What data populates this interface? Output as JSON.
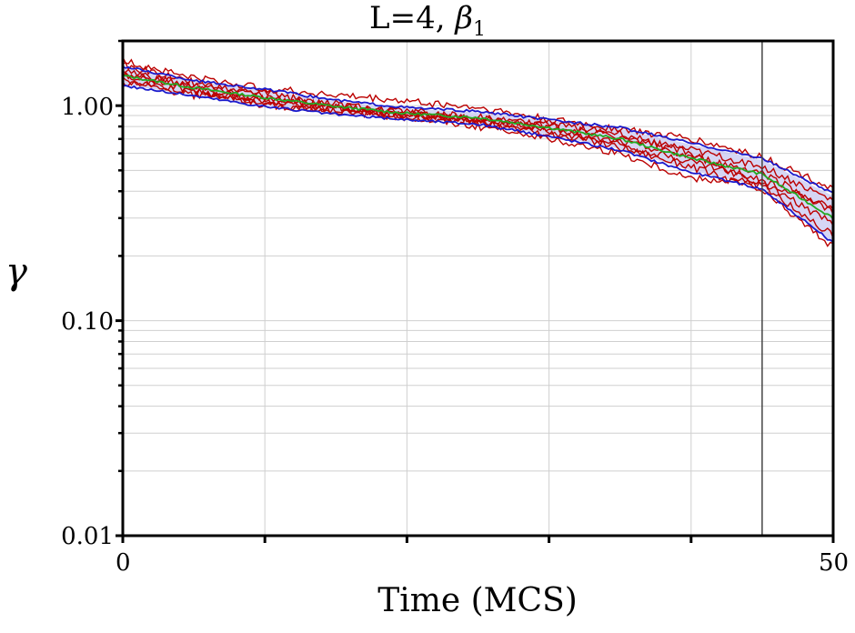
{
  "chart_data": {
    "type": "line",
    "title_main": "L=4, ",
    "title_symbol": "β",
    "title_subscript": "1",
    "xlabel": "Time (MCS)",
    "ylabel": "γ",
    "xlim": [
      0,
      50
    ],
    "ylim": [
      0.01,
      2.0
    ],
    "yscale": "log",
    "grid": true,
    "xtick_labels": [
      {
        "value": 0,
        "label": "0"
      },
      {
        "value": 50,
        "label": "50"
      }
    ],
    "ytick_labels": [
      {
        "value": 1.0,
        "label": "1.00"
      },
      {
        "value": 0.1,
        "label": "0.10"
      },
      {
        "value": 0.01,
        "label": "0.01"
      }
    ],
    "vertical_marker_x": 45,
    "band": {
      "x": [
        0,
        5,
        10,
        15,
        20,
        25,
        30,
        35,
        40,
        45,
        50
      ],
      "upper": [
        1.5,
        1.3,
        1.18,
        1.05,
        0.97,
        0.93,
        0.85,
        0.78,
        0.66,
        0.56,
        0.38
      ],
      "lower": [
        1.25,
        1.12,
        1.0,
        0.92,
        0.87,
        0.83,
        0.73,
        0.63,
        0.5,
        0.42,
        0.23
      ]
    },
    "series": [
      {
        "color": "#22aa22",
        "x": [
          0,
          5,
          10,
          15,
          20,
          25,
          30,
          35,
          40,
          45,
          50
        ],
        "values": [
          1.38,
          1.21,
          1.09,
          0.99,
          0.92,
          0.88,
          0.79,
          0.7,
          0.57,
          0.48,
          0.3
        ]
      },
      {
        "color": "#1a1acc",
        "x": [
          0,
          5,
          10,
          15,
          20,
          25,
          30,
          35,
          40,
          45,
          50
        ],
        "values": [
          1.52,
          1.31,
          1.19,
          1.06,
          0.98,
          0.94,
          0.86,
          0.79,
          0.67,
          0.57,
          0.39
        ]
      },
      {
        "color": "#1a1acc",
        "x": [
          0,
          5,
          10,
          15,
          20,
          25,
          30,
          35,
          40,
          45,
          50
        ],
        "values": [
          1.24,
          1.11,
          0.99,
          0.91,
          0.86,
          0.82,
          0.72,
          0.62,
          0.49,
          0.41,
          0.23
        ]
      },
      {
        "color": "#bb0000",
        "x": [
          0,
          5,
          10,
          15,
          20,
          25,
          30,
          35,
          40,
          45,
          50
        ],
        "values": [
          1.62,
          1.35,
          1.2,
          1.12,
          1.05,
          0.98,
          0.86,
          0.78,
          0.7,
          0.58,
          0.41
        ]
      },
      {
        "color": "#bb0000",
        "x": [
          0,
          5,
          10,
          15,
          20,
          25,
          30,
          35,
          40,
          45,
          50
        ],
        "values": [
          1.55,
          1.28,
          1.1,
          0.98,
          0.95,
          0.86,
          0.8,
          0.72,
          0.62,
          0.52,
          0.36
        ]
      },
      {
        "color": "#bb0000",
        "x": [
          0,
          5,
          10,
          15,
          20,
          25,
          30,
          35,
          40,
          45,
          50
        ],
        "values": [
          1.45,
          1.22,
          1.14,
          1.0,
          0.9,
          0.9,
          0.78,
          0.66,
          0.55,
          0.45,
          0.33
        ]
      },
      {
        "color": "#bb0000",
        "x": [
          0,
          5,
          10,
          15,
          20,
          25,
          30,
          35,
          40,
          45,
          50
        ],
        "values": [
          1.38,
          1.18,
          1.05,
          1.02,
          0.93,
          0.84,
          0.7,
          0.6,
          0.46,
          0.44,
          0.28
        ]
      },
      {
        "color": "#bb0000",
        "x": [
          0,
          5,
          10,
          15,
          20,
          25,
          30,
          35,
          40,
          45,
          50
        ],
        "values": [
          1.32,
          1.16,
          1.02,
          0.95,
          0.88,
          0.8,
          0.74,
          0.68,
          0.58,
          0.49,
          0.32
        ]
      },
      {
        "color": "#bb0000",
        "x": [
          0,
          5,
          10,
          15,
          20,
          25,
          30,
          35,
          40,
          45,
          50
        ],
        "values": [
          1.28,
          1.12,
          1.08,
          0.94,
          0.91,
          0.87,
          0.82,
          0.74,
          0.6,
          0.42,
          0.25
        ]
      },
      {
        "color": "#bb0000",
        "x": [
          0,
          5,
          10,
          15,
          20,
          25,
          30,
          35,
          40,
          45,
          50
        ],
        "values": [
          1.4,
          1.25,
          1.0,
          0.97,
          0.89,
          0.85,
          0.76,
          0.64,
          0.52,
          0.4,
          0.22
        ]
      }
    ]
  }
}
